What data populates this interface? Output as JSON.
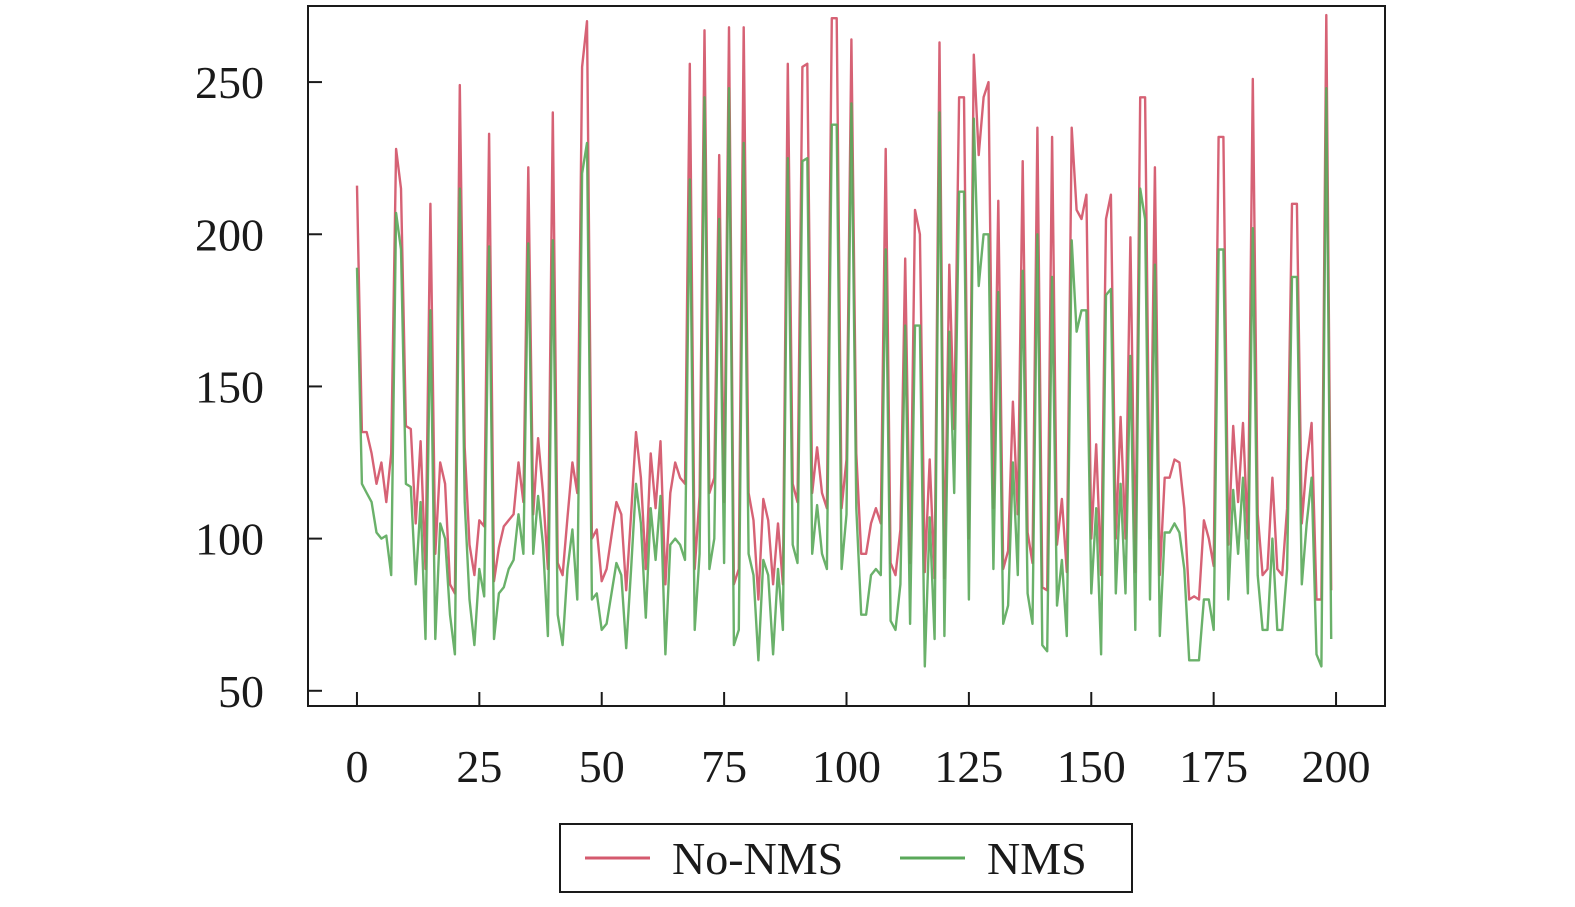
{
  "chart_data": {
    "type": "line",
    "title": "",
    "xlabel": "",
    "ylabel": "",
    "xlim": [
      -10,
      210
    ],
    "ylim": [
      45,
      275
    ],
    "xticks": [
      0,
      25,
      50,
      75,
      100,
      125,
      150,
      175,
      200
    ],
    "yticks": [
      50,
      100,
      150,
      200,
      250
    ],
    "grid": false,
    "legend_position": "bottom-center",
    "series": [
      {
        "name": "No-NMS",
        "color": "#d45a6e",
        "values": [
          216,
          135,
          135,
          128,
          118,
          125,
          112,
          128,
          228,
          215,
          137,
          136,
          105,
          132,
          90,
          210,
          95,
          125,
          118,
          85,
          82,
          249,
          130,
          98,
          88,
          106,
          104,
          233,
          86,
          97,
          104,
          106,
          108,
          125,
          112,
          222,
          108,
          133,
          115,
          90,
          240,
          92,
          88,
          107,
          125,
          115,
          255,
          270,
          100,
          103,
          86,
          90,
          101,
          112,
          108,
          83,
          108,
          135,
          120,
          90,
          128,
          110,
          132,
          85,
          115,
          125,
          120,
          118,
          256,
          90,
          114,
          267,
          115,
          120,
          226,
          112,
          268,
          85,
          90,
          268,
          115,
          106,
          80,
          113,
          106,
          85,
          105,
          85,
          256,
          118,
          112,
          255,
          256,
          115,
          130,
          115,
          110,
          271,
          271,
          110,
          126,
          264,
          128,
          95,
          95,
          105,
          110,
          105,
          228,
          92,
          88,
          103,
          192,
          92,
          208,
          200,
          89,
          126,
          87,
          263,
          87,
          190,
          136,
          245,
          245,
          100,
          259,
          226,
          245,
          250,
          110,
          211,
          90,
          96,
          145,
          108,
          224,
          102,
          92,
          235,
          84,
          83,
          232,
          98,
          113,
          89,
          235,
          208,
          205,
          213,
          100,
          131,
          88,
          205,
          213,
          100,
          140,
          100,
          199,
          89,
          245,
          245,
          100,
          222,
          88,
          120,
          120,
          126,
          125,
          110,
          80,
          81,
          80,
          106,
          100,
          91,
          232,
          232,
          98,
          137,
          112,
          138,
          100,
          251,
          108,
          88,
          90,
          120,
          90,
          88,
          110,
          210,
          210,
          105,
          125,
          138,
          80,
          80,
          272,
          83
        ]
      },
      {
        "name": "NMS",
        "color": "#5aa85a",
        "values": [
          189,
          118,
          115,
          112,
          102,
          100,
          101,
          88,
          207,
          195,
          118,
          117,
          85,
          112,
          67,
          175,
          67,
          105,
          100,
          75,
          62,
          215,
          112,
          80,
          65,
          90,
          81,
          196,
          67,
          82,
          84,
          90,
          93,
          108,
          95,
          197,
          95,
          114,
          98,
          68,
          198,
          75,
          65,
          90,
          103,
          80,
          220,
          230,
          80,
          82,
          70,
          72,
          82,
          92,
          88,
          64,
          90,
          118,
          105,
          74,
          110,
          93,
          114,
          62,
          98,
          100,
          98,
          93,
          218,
          70,
          95,
          245,
          90,
          100,
          205,
          92,
          248,
          65,
          70,
          230,
          95,
          88,
          60,
          93,
          88,
          62,
          90,
          70,
          225,
          98,
          92,
          224,
          225,
          95,
          111,
          95,
          90,
          236,
          236,
          90,
          108,
          243,
          110,
          75,
          75,
          88,
          90,
          88,
          195,
          73,
          70,
          85,
          170,
          72,
          170,
          170,
          58,
          107,
          67,
          240,
          68,
          168,
          115,
          214,
          214,
          80,
          238,
          183,
          200,
          200,
          90,
          181,
          72,
          78,
          125,
          88,
          188,
          82,
          72,
          200,
          65,
          63,
          186,
          78,
          93,
          68,
          198,
          168,
          175,
          175,
          82,
          110,
          62,
          180,
          182,
          82,
          118,
          82,
          160,
          70,
          215,
          205,
          80,
          190,
          68,
          102,
          102,
          105,
          102,
          90,
          60,
          60,
          60,
          80,
          80,
          70,
          195,
          195,
          80,
          116,
          95,
          120,
          82,
          202,
          88,
          70,
          70,
          100,
          70,
          70,
          90,
          186,
          186,
          85,
          105,
          120,
          62,
          58,
          248,
          67
        ]
      }
    ]
  }
}
